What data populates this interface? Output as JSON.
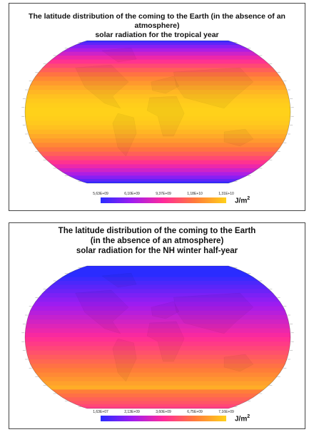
{
  "maps": [
    {
      "id": "tropical-year",
      "title_lines": [
        "The latitude distribution of the coming to the Earth (in the absence of an atmosphere)",
        "solar radiation for the tropical year"
      ],
      "colorbar": {
        "ticks": [
          "5,63E+09",
          "6,10E+09",
          "9,37E+09",
          "1,18E+10",
          "1,31E+10"
        ],
        "unit_base": "J/m",
        "unit_exp": "2",
        "colors": [
          "#2a2cff",
          "#a01cf0",
          "#ff2a9a",
          "#ff7a3a",
          "#ffd11a"
        ]
      },
      "chart_data": {
        "type": "heatmap",
        "projection": "Robinson world map",
        "latitude_profile": "symmetric, maximum at equator, minimum at poles",
        "min_label": "5,63E+09",
        "max_label": "1,31E+10"
      }
    },
    {
      "id": "nh-winter-half-year",
      "title_lines": [
        "The latitude distribution of the coming to the Earth",
        "(in the absence of an atmosphere)",
        "solar radiation for the NH winter half-year"
      ],
      "colorbar": {
        "ticks": [
          "1,63E+07",
          "2,13E+09",
          "3,60E+09",
          "6,75E+09",
          "7,16E+09"
        ],
        "unit_base": "J/m",
        "unit_exp": "2",
        "colors": [
          "#2a2cff",
          "#a01cf0",
          "#ff2a9a",
          "#ff7a3a",
          "#ffd11a"
        ]
      },
      "chart_data": {
        "type": "heatmap",
        "projection": "Robinson world map",
        "latitude_profile": "minimum at north pole, maximum in southern high latitudes",
        "min_label": "1,63E+07",
        "max_label": "7,16E+09"
      }
    }
  ]
}
